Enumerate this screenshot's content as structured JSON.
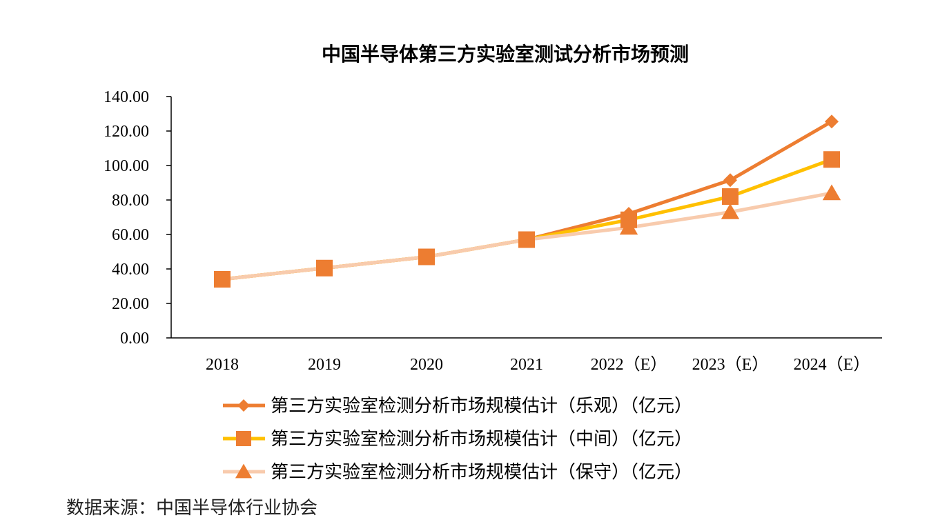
{
  "chart_data": {
    "type": "line",
    "title": "中国半导体第三方实验室测试分析市场预测",
    "categories": [
      "2018",
      "2019",
      "2020",
      "2021",
      "2022（E）",
      "2023（E）",
      "2024（E）"
    ],
    "y_ticks": [
      "0.00",
      "20.00",
      "40.00",
      "60.00",
      "80.00",
      "100.00",
      "120.00",
      "140.00"
    ],
    "ylim": [
      0,
      140
    ],
    "grid": false,
    "legend_position": "bottom",
    "series": [
      {
        "name": "第三方实验室检测分析市场规模估计（乐观）（亿元）",
        "color": "#ED7D31",
        "marker": "diamond",
        "values": [
          34.0,
          40.5,
          47.0,
          57.0,
          72.0,
          91.5,
          125.5
        ]
      },
      {
        "name": "第三方实验室检测分析市场规模估计（中间）（亿元）",
        "color": "#FFC000",
        "marker": "square",
        "values": [
          34.0,
          40.5,
          47.0,
          57.0,
          68.5,
          82.0,
          103.5
        ]
      },
      {
        "name": "第三方实验室检测分析市场规模估计（保守）（亿元）",
        "color": "#F8CBAD",
        "marker": "triangle",
        "values": [
          34.0,
          40.5,
          47.0,
          57.0,
          64.0,
          73.0,
          84.0
        ]
      }
    ],
    "marker_color": "#ED7D31"
  },
  "source": "数据来源：中国半导体行业协会"
}
